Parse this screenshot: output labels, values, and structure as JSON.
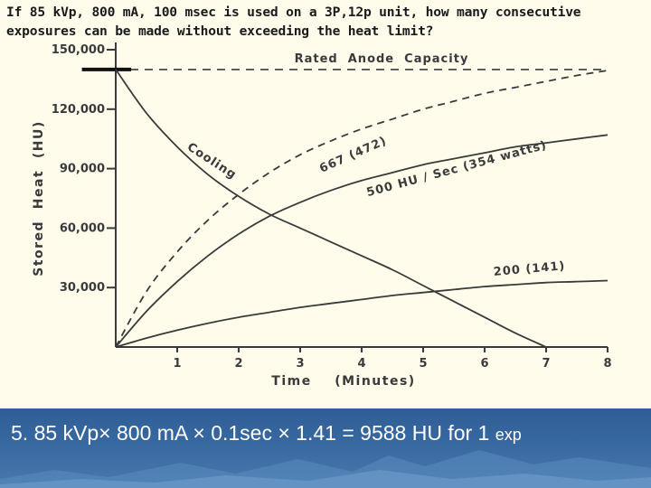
{
  "question": "If 85 kVp, 800 mA, 100 msec is used on a 3P,12p unit, how many consecutive exposures can be made without exceeding the heat limit?",
  "answer": "5. 85 kVp× 800 mA × 0.1sec × 1.41 = 9588 HU for 1 ",
  "answer_tail": "exp",
  "colors": {
    "band": "#3868a0",
    "ink": "#3a3a3a",
    "background": "#fffcec"
  },
  "chart_data": {
    "type": "line",
    "xlabel": "Time    (Minutes)",
    "ylabel": "Stored  Heat  (HU)",
    "xlim": [
      0,
      8
    ],
    "ylim": [
      0,
      150000
    ],
    "x_ticks": [
      1,
      2,
      3,
      4,
      5,
      6,
      7,
      8
    ],
    "x_tick_labels": [
      "1",
      "2",
      "3",
      "4",
      "5",
      "6",
      "7",
      "8"
    ],
    "y_ticks": [
      30000,
      60000,
      90000,
      120000,
      150000
    ],
    "y_tick_labels": [
      "30,000",
      "60,000",
      "90,000",
      "120,000",
      "150,000"
    ],
    "grid": false,
    "reference_line": {
      "label": "Rated  Anode  Capacity",
      "y": 140000,
      "style": "dashed"
    },
    "series": [
      {
        "name": "Cooling",
        "style": "solid",
        "x": [
          0,
          0.5,
          1,
          1.5,
          2,
          2.5,
          3,
          3.5,
          4,
          4.5,
          5,
          5.5,
          6,
          6.5,
          7
        ],
        "y": [
          140000,
          118000,
          101000,
          87000,
          76000,
          67000,
          60000,
          53000,
          46000,
          39000,
          31000,
          23000,
          15000,
          7000,
          0
        ]
      },
      {
        "name": "667 (472)",
        "style": "dashed",
        "x": [
          0,
          0.5,
          1,
          1.5,
          2,
          2.5,
          3,
          3.5,
          4,
          4.5,
          5,
          5.5,
          6,
          6.5,
          7,
          7.5,
          8
        ],
        "y": [
          0,
          28000,
          48000,
          64000,
          77000,
          88000,
          97000,
          104000,
          110000,
          115000,
          120000,
          124000,
          128000,
          131000,
          134000,
          137000,
          139500
        ]
      },
      {
        "name": "500 HU / Sec (354 watts)",
        "style": "solid",
        "x": [
          0,
          0.5,
          1,
          1.5,
          2,
          2.5,
          3,
          3.5,
          4,
          4.5,
          5,
          5.5,
          6,
          6.5,
          7,
          7.5,
          8
        ],
        "y": [
          0,
          18000,
          33000,
          46000,
          57000,
          66000,
          73000,
          79000,
          84000,
          88000,
          92000,
          95000,
          98000,
          101000,
          103000,
          105000,
          107000
        ]
      },
      {
        "name": "200 (141)",
        "style": "solid",
        "x": [
          0,
          0.5,
          1,
          1.5,
          2,
          2.5,
          3,
          3.5,
          4,
          4.5,
          5,
          5.5,
          6,
          6.5,
          7,
          7.5,
          8
        ],
        "y": [
          0,
          4500,
          8500,
          12000,
          15000,
          17500,
          20000,
          22000,
          24000,
          26000,
          27500,
          29000,
          30500,
          31500,
          32500,
          33000,
          33500
        ]
      }
    ],
    "annotations": [
      {
        "text": "Cooling",
        "x": 1.15,
        "y": 100000
      },
      {
        "text": "667 (472)",
        "x": 3.35,
        "y": 88000
      },
      {
        "text": "500 HU / Sec (354 watts)",
        "x": 4.1,
        "y": 76000
      },
      {
        "text": "200 (141)",
        "x": 6.15,
        "y": 36000
      }
    ],
    "marker_bar": {
      "x": [
        -0.55,
        0.25
      ],
      "y": 140000
    }
  }
}
